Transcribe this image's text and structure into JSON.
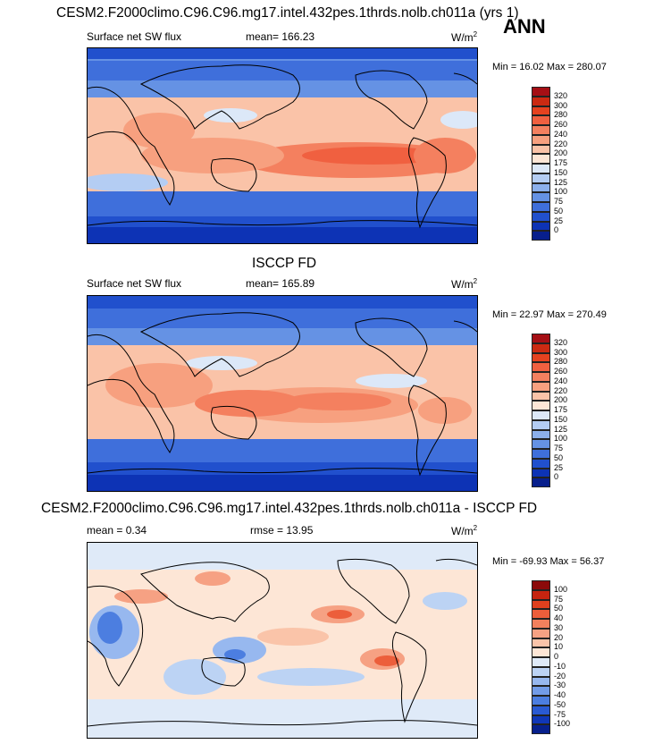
{
  "panels": [
    {
      "title": "CESM2.F2000climo.C96.C96.mg17.intel.432pes.1thrds.nolb.ch011a (yrs 1)",
      "variable": "Surface net SW flux",
      "stat": "mean= 166.23",
      "units": "W/m",
      "units_sup": "2",
      "minmax": "Min =  16.02 Max = 280.07",
      "kind": "abs"
    },
    {
      "title": "ISCCP FD",
      "variable": "Surface net SW flux",
      "stat": "mean= 165.89",
      "units": "W/m",
      "units_sup": "2",
      "minmax": "Min =  22.97 Max = 270.49",
      "kind": "abs"
    },
    {
      "title": "CESM2.F2000climo.C96.C96.mg17.intel.432pes.1thrds.nolb.ch011a - ISCCP FD",
      "variable": "mean =   0.34",
      "stat": "rmse =  13.95",
      "units": "W/m",
      "units_sup": "2",
      "minmax": "Min = -69.93 Max =  56.37",
      "kind": "diff"
    }
  ],
  "season": "ANN",
  "colorbars": {
    "abs": {
      "labels": [
        "320",
        "300",
        "280",
        "260",
        "240",
        "220",
        "200",
        "175",
        "150",
        "125",
        "100",
        "75",
        "50",
        "25",
        "0"
      ],
      "colors": [
        "#a50f15",
        "#cb2a12",
        "#e5421f",
        "#f06040",
        "#f4805f",
        "#f7a07f",
        "#fac3a8",
        "#fde6d6",
        "#dce8f8",
        "#b4cdf3",
        "#8cb0ec",
        "#6592e4",
        "#3f6fdb",
        "#2150cd",
        "#0d33b5",
        "#081f8c"
      ]
    },
    "diff": {
      "labels": [
        "100",
        "75",
        "50",
        "40",
        "30",
        "20",
        "10",
        "0",
        "-10",
        "-20",
        "-30",
        "-40",
        "-50",
        "-75",
        "-100"
      ],
      "colors": [
        "#8b0a0a",
        "#c62410",
        "#e0401e",
        "#ec5e3b",
        "#f2805d",
        "#f6a183",
        "#fac4a9",
        "#fde6d6",
        "#dfeaf8",
        "#bcd3f4",
        "#97b8ef",
        "#729ce8",
        "#4c7ee0",
        "#2a5ad2",
        "#1037b7",
        "#07208c"
      ]
    }
  }
}
